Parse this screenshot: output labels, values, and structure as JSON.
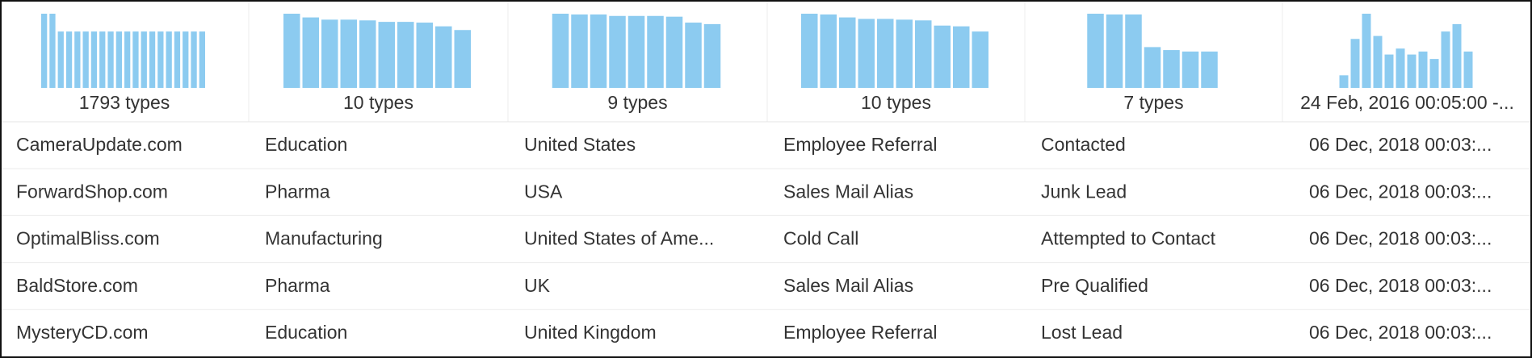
{
  "columns": [
    {
      "histogram": [
        100,
        100,
        76,
        76,
        76,
        76,
        76,
        76,
        76,
        76,
        76,
        76,
        76,
        76,
        76,
        76,
        76,
        76,
        76,
        76
      ],
      "ylim": [
        0,
        100
      ],
      "summary": "1793 types"
    },
    {
      "histogram": [
        100,
        95,
        92,
        92,
        91,
        89,
        89,
        88,
        83,
        78
      ],
      "ylim": [
        0,
        100
      ],
      "summary": "10 types"
    },
    {
      "histogram": [
        100,
        99,
        99,
        97,
        97,
        97,
        96,
        88,
        86
      ],
      "ylim": [
        0,
        100
      ],
      "summary": "9 types"
    },
    {
      "histogram": [
        100,
        99,
        95,
        93,
        93,
        92,
        91,
        84,
        83,
        76
      ],
      "ylim": [
        0,
        100
      ],
      "summary": "10 types"
    },
    {
      "histogram": [
        100,
        99,
        99,
        55,
        51,
        49,
        49
      ],
      "ylim": [
        0,
        100
      ],
      "summary": "7 types"
    },
    {
      "histogram": [
        17,
        66,
        100,
        70,
        45,
        53,
        45,
        49,
        39,
        76,
        86,
        49
      ],
      "ylim": [
        0,
        100
      ],
      "summary": "24 Feb, 2016 00:05:00 -..."
    }
  ],
  "rows": [
    [
      "CameraUpdate.com",
      "Education",
      "United States",
      "Employee Referral",
      "Contacted",
      "06 Dec, 2018 00:03:..."
    ],
    [
      "ForwardShop.com",
      "Pharma",
      "USA",
      "Sales Mail Alias",
      "Junk Lead",
      "06 Dec, 2018 00:03:..."
    ],
    [
      "OptimalBliss.com",
      "Manufacturing",
      "United States of Ame...",
      "Cold Call",
      "Attempted to Contact",
      "06 Dec, 2018 00:03:..."
    ],
    [
      "BaldStore.com",
      "Pharma",
      "UK",
      "Sales Mail Alias",
      "Pre Qualified",
      "06 Dec, 2018 00:03:..."
    ],
    [
      "MysteryCD.com",
      "Education",
      "United Kingdom",
      "Employee Referral",
      "Lost Lead",
      "06 Dec, 2018 00:03:..."
    ]
  ]
}
